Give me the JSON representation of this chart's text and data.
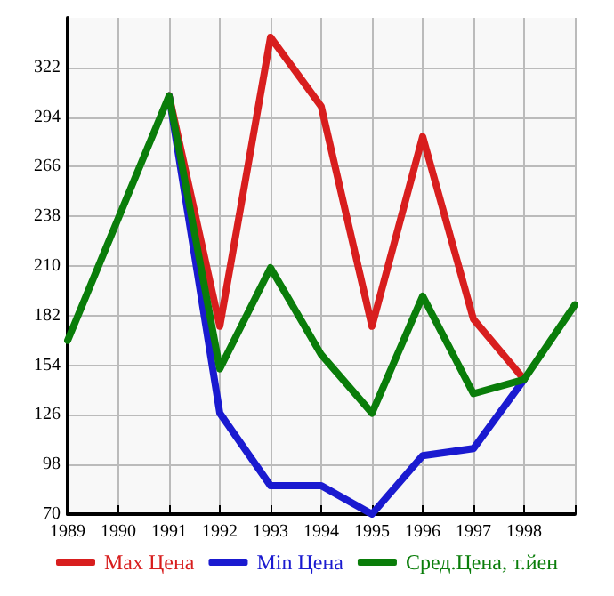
{
  "chart_data": {
    "type": "line",
    "categories": [
      "1989",
      "1990",
      "1991",
      "1992",
      "1993",
      "1994",
      "1995",
      "1996",
      "1997",
      "1998",
      null
    ],
    "series": [
      {
        "name": "Max Цена",
        "color": "#d81e1e",
        "values": [
          null,
          null,
          306,
          176,
          339,
          300,
          176,
          283,
          180,
          146,
          null
        ]
      },
      {
        "name": "Min Цена",
        "color": "#1a1ad0",
        "values": [
          null,
          null,
          306,
          127,
          86,
          86,
          70,
          103,
          107,
          146,
          null
        ]
      },
      {
        "name": "Сред.Цена, т.йен",
        "color": "#0a7d0a",
        "values": [
          168,
          237,
          306,
          152,
          209,
          160,
          127,
          193,
          138,
          146,
          188
        ]
      }
    ],
    "ylim": [
      70,
      350
    ],
    "yticks": [
      70,
      98,
      126,
      154,
      182,
      210,
      238,
      266,
      294,
      322
    ],
    "grid": true,
    "legend": "bottom",
    "marker": "none",
    "line_style": "solid"
  }
}
